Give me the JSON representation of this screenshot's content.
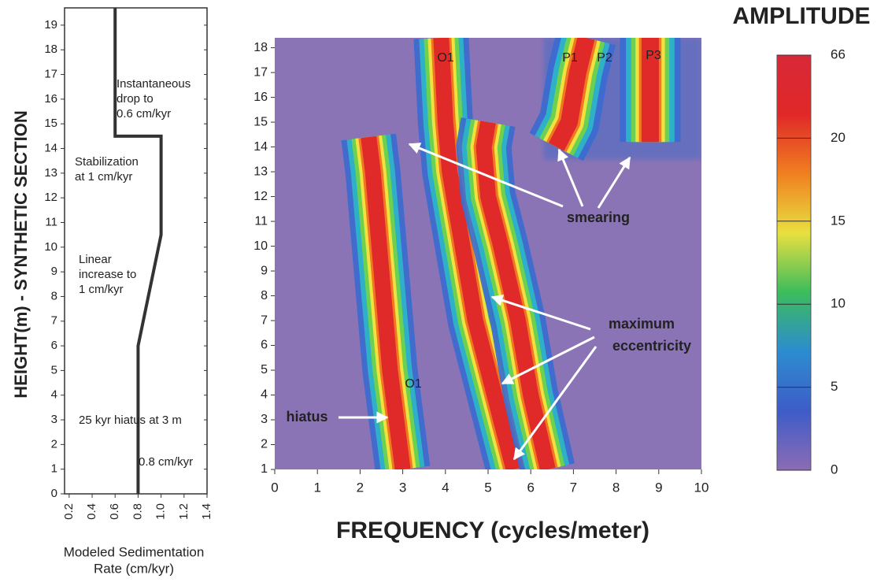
{
  "chart_data": [
    {
      "type": "line",
      "ylabel": "HEIGHT(m) - SYNTHETIC SECTION",
      "xlabel": [
        "Modeled Sedimentation",
        "Rate (cm/kyr)"
      ],
      "x": [
        0.8,
        0.8,
        1,
        1,
        0.6,
        0.6
      ],
      "y": [
        0,
        6,
        10.5,
        14.5,
        14.5,
        19.7
      ],
      "color": "#333333",
      "xlim": [
        0.16,
        1.4
      ],
      "ylim": [
        0,
        19.7
      ],
      "xticks": [
        0.2,
        0.4,
        0.6,
        0.8,
        {
          "value": 1,
          "label": "1.0"
        },
        1.2,
        1.4
      ],
      "yticks": [
        0,
        1,
        2,
        3,
        4,
        5,
        6,
        7,
        8,
        9,
        10,
        11,
        12,
        13,
        14,
        15,
        16,
        17,
        18,
        19
      ],
      "annotations": [
        [
          "Instantaneous",
          "drop to",
          "0.6 cm/kyr"
        ],
        [
          "Stabilization",
          "at 1 cm/kyr"
        ],
        [
          "Linear",
          "increase to",
          "1 cm/kyr"
        ],
        [
          "25 kyr hiatus at 3 m"
        ],
        [
          "0.8 cm/kyr"
        ]
      ]
    },
    {
      "type": "spectrogram",
      "xlabel": "FREQUENCY (cycles/meter)",
      "xlim": [
        0,
        10
      ],
      "ylim": [
        1,
        18.4
      ],
      "xticks": [
        0,
        1,
        2,
        3,
        4,
        5,
        6,
        7,
        8,
        9,
        10
      ],
      "yticks": [
        1,
        2,
        3,
        4,
        5,
        6,
        7,
        8,
        9,
        10,
        11,
        12,
        13,
        14,
        15,
        16,
        17,
        18
      ],
      "ridges": [
        {
          "x": [
            3.0,
            2.85,
            2.7,
            2.6,
            2.5,
            2.4,
            2.3,
            2.2
          ],
          "y": [
            1,
            3,
            5,
            7,
            9,
            11,
            13,
            14.4
          ]
        },
        {
          "x": [
            5.6,
            5.3,
            5.0,
            4.7,
            4.5,
            4.3,
            4.1,
            4.0,
            3.9
          ],
          "y": [
            1,
            3,
            5,
            7,
            9,
            11,
            13,
            15,
            18.4
          ]
        },
        {
          "x": [
            6.4,
            6.0,
            5.7,
            5.3,
            5.0,
            4.9,
            5.0
          ],
          "y": [
            1,
            4,
            7,
            10,
            12,
            14,
            15
          ]
        },
        {
          "x": [
            7.3,
            7.1,
            6.9,
            6.6
          ],
          "y": [
            18.4,
            17,
            15,
            14
          ]
        },
        {
          "x": [
            8.8,
            8.8,
            8.8
          ],
          "y": [
            18.4,
            16,
            14.2
          ]
        }
      ],
      "labels": [
        "O1",
        "O1",
        "P1",
        "P2",
        "P3",
        "smearing",
        "maximum",
        "eccentricity",
        "hiatus"
      ]
    },
    {
      "type": "colorbar",
      "title": "AMPLITUDE",
      "yticks": [
        0,
        5,
        10,
        15,
        20,
        66
      ],
      "colors": [
        "#8c6cb4",
        "#3e5cc8",
        "#2c8cd0",
        "#3cbc5c",
        "#e8e040",
        "#f08020",
        "#e02828",
        "#d82838"
      ]
    }
  ]
}
